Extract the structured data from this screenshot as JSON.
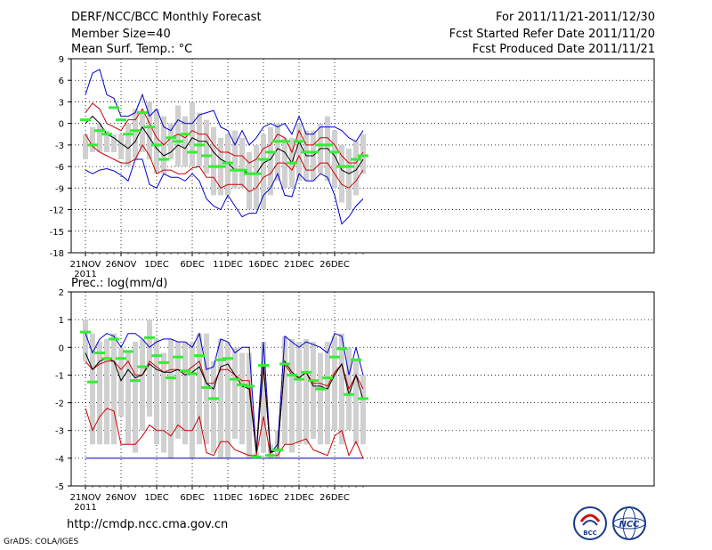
{
  "header": {
    "title": "DERF/NCC/BCC Monthly Forecast",
    "member_size": "Member Size=40",
    "variable": "Mean Surf. Temp.: °C",
    "period": "For 2011/11/21-2011/12/30",
    "started": "Fcst Started Refer Date 2011/11/20",
    "produced": "Fcst Produced Date 2011/11/21"
  },
  "footer": {
    "url": "http://cmdp.ncc.cma.gov.cn",
    "grads": "GrADS: COLA/IGES",
    "logo_left": "BCC",
    "logo_right": "NCC"
  },
  "colors": {
    "box": "#d0d0d0",
    "mean": "#000000",
    "spread": "#cc0000",
    "extreme": "#0000cc",
    "obs": "#33ee33",
    "grid": "#000000"
  },
  "chart_data": [
    {
      "type": "line",
      "title": "Mean Surf. Temp.: °C",
      "ylabel": "°C",
      "ylim": [
        -18,
        9
      ],
      "yticks": [
        -18,
        -15,
        -12,
        -9,
        -6,
        -3,
        0,
        3,
        6,
        9
      ],
      "x": [
        1,
        2,
        3,
        4,
        5,
        6,
        7,
        8,
        9,
        10,
        11,
        12,
        13,
        14,
        15,
        16,
        17,
        18,
        19,
        20,
        21,
        22,
        23,
        24,
        25,
        26,
        27,
        28,
        29,
        30,
        31,
        32,
        33,
        34,
        35,
        36,
        37,
        38,
        39,
        40
      ],
      "x_tick_labels": [
        {
          "x": 1,
          "label": "21NOV",
          "sub": "2011"
        },
        {
          "x": 6,
          "label": "26NOV"
        },
        {
          "x": 11,
          "label": "1DEC"
        },
        {
          "x": 16,
          "label": "6DEC"
        },
        {
          "x": 21,
          "label": "11DEC"
        },
        {
          "x": 26,
          "label": "16DEC"
        },
        {
          "x": 31,
          "label": "21DEC"
        },
        {
          "x": 36,
          "label": "26DEC"
        }
      ],
      "series": [
        {
          "name": "max",
          "values": [
            -1.5,
            -0.5,
            0,
            -1,
            -1.5,
            -1.5,
            0,
            2,
            1.5,
            3,
            2,
            1,
            0,
            2.5,
            1,
            3,
            1.5,
            0.5,
            -0.5,
            -2,
            -1.5,
            -1,
            -2,
            -4,
            -3,
            -1.5,
            -0.5,
            0,
            -2,
            -2,
            0,
            -1,
            -1,
            0,
            1,
            -1,
            -3,
            -3.5,
            -2.5,
            -1.5
          ]
        },
        {
          "name": "min",
          "values": [
            -5,
            -4,
            -4,
            -4,
            -4,
            -5,
            -6,
            -5,
            -4,
            -5,
            -7,
            -7,
            -5,
            -6,
            -6,
            -6,
            -6,
            -7,
            -10,
            -10,
            -10,
            -9,
            -9,
            -12,
            -12,
            -12,
            -10,
            -8,
            -9,
            -9,
            -8,
            -8,
            -8,
            -7,
            -8,
            -9,
            -11,
            -12,
            -10,
            -7
          ]
        },
        {
          "name": "ens_max",
          "values": [
            4,
            7,
            7.5,
            4,
            3.5,
            1,
            1,
            1.5,
            4,
            1,
            2,
            -0.5,
            -1,
            0.5,
            0,
            0,
            1.2,
            1.5,
            1.8,
            -0.5,
            -1,
            -3,
            -1,
            -3,
            -2,
            -0.5,
            0,
            -0.5,
            0,
            -1.5,
            1,
            -1.5,
            -1.5,
            -0.5,
            -0.5,
            -0.5,
            -1,
            -2,
            -2.5,
            -1
          ]
        },
        {
          "name": "ens_min",
          "values": [
            -6.5,
            -7,
            -6.5,
            -6.3,
            -6.6,
            -7.2,
            -8,
            -5,
            -5,
            -8.5,
            -9,
            -7,
            -7.5,
            -7.5,
            -8,
            -7,
            -8,
            -10.5,
            -11.5,
            -12,
            -10,
            -11.5,
            -13,
            -12.5,
            -12.5,
            -10,
            -9,
            -7,
            -10,
            -10.2,
            -7,
            -8,
            -8,
            -7,
            -7.5,
            -10,
            -14,
            -13,
            -11.5,
            -10.5
          ]
        },
        {
          "name": "spread_upper",
          "values": [
            1.5,
            2.8,
            2,
            0,
            -0.5,
            -1,
            0.5,
            0.5,
            2,
            0,
            -2,
            -3,
            -2,
            -1.5,
            -2,
            -1,
            -1.5,
            -1.5,
            -3,
            -4,
            -4,
            -4.5,
            -4.5,
            -5.5,
            -5,
            -3.5,
            -3,
            -1.5,
            -2,
            -4,
            -1,
            -3,
            -3,
            -2,
            -2,
            -3,
            -4.5,
            -5.5,
            -5.5,
            -4
          ]
        },
        {
          "name": "spread_lower",
          "values": [
            -1.5,
            -3.2,
            -4,
            -4.5,
            -5,
            -5.5,
            -5.5,
            -5,
            -3,
            -4.5,
            -7,
            -6.5,
            -6.5,
            -7,
            -7,
            -6.2,
            -6,
            -7.5,
            -7.5,
            -9,
            -8.5,
            -8.5,
            -8.5,
            -9.5,
            -9,
            -7.5,
            -7,
            -5.5,
            -5.5,
            -6.5,
            -4.5,
            -6.5,
            -6.5,
            -5.5,
            -5.5,
            -7,
            -8.5,
            -9,
            -8,
            -6.5
          ]
        },
        {
          "name": "ens_mean",
          "values": [
            0,
            1,
            0,
            -1.5,
            -2,
            -2.8,
            -3.5,
            -2.5,
            -0.5,
            -2,
            -3.5,
            -4.5,
            -4,
            -3,
            -3.5,
            -2,
            -2.5,
            -2.5,
            -4,
            -5,
            -5.5,
            -6.5,
            -6.5,
            -7,
            -7,
            -5.5,
            -5,
            -3.5,
            -4,
            -5.5,
            -2.5,
            -4.5,
            -4.5,
            -3.5,
            -3.5,
            -4.5,
            -6.5,
            -7,
            -6.5,
            -5
          ]
        },
        {
          "name": "observed",
          "values": [
            0.5,
            -3,
            -1,
            -1.5,
            2.2,
            0.5,
            -1.5,
            -1,
            1.5,
            -0.5,
            -3,
            -5,
            -2,
            -2.5,
            -1.5,
            -4,
            -3,
            -4.5,
            -6,
            -6,
            -5.5,
            -6.5,
            -6.5,
            -7,
            -7,
            -5,
            -4,
            -2.5,
            -2.5,
            -5.5,
            -2.5,
            -4,
            -4,
            -3,
            -3,
            -4,
            -6,
            -6,
            -5,
            -4.5
          ]
        }
      ]
    },
    {
      "type": "line",
      "title": "Prec.: log(mm/d)",
      "ylabel": "log(mm/d)",
      "ylim": [
        -5,
        2
      ],
      "yticks": [
        -5,
        -4,
        -3,
        -2,
        -1,
        0,
        1,
        2
      ],
      "x": [
        1,
        2,
        3,
        4,
        5,
        6,
        7,
        8,
        9,
        10,
        11,
        12,
        13,
        14,
        15,
        16,
        17,
        18,
        19,
        20,
        21,
        22,
        23,
        24,
        25,
        26,
        27,
        28,
        29,
        30,
        31,
        32,
        33,
        34,
        35,
        36,
        37,
        38,
        39,
        40
      ],
      "x_tick_labels": [
        {
          "x": 1,
          "label": "21NOV",
          "sub": "2011"
        },
        {
          "x": 6,
          "label": "26NOV"
        },
        {
          "x": 11,
          "label": "1DEC"
        },
        {
          "x": 16,
          "label": "6DEC"
        },
        {
          "x": 21,
          "label": "11DEC"
        },
        {
          "x": 26,
          "label": "16DEC"
        },
        {
          "x": 31,
          "label": "21DEC"
        },
        {
          "x": 36,
          "label": "26DEC"
        }
      ],
      "series": [
        {
          "name": "max",
          "values": [
            1,
            0.5,
            0.2,
            0.3,
            0.5,
            0,
            -0.2,
            0.2,
            0.3,
            1,
            0.3,
            -0.2,
            0.3,
            0.2,
            0.2,
            0.2,
            0.5,
            0.5,
            -0.5,
            0.3,
            0.2,
            0,
            -0.2,
            -0.2,
            -3.8,
            0.2,
            -3.5,
            -3,
            0.4,
            0.3,
            0.2,
            0.3,
            0.2,
            -0.2,
            0.2,
            0.4,
            0.5,
            0,
            -0.5,
            -1
          ]
        },
        {
          "name": "min",
          "values": [
            -0.5,
            -3.5,
            -3.5,
            -3.5,
            -3.5,
            -2.5,
            -3.5,
            -3.8,
            -3,
            -2.5,
            -3.5,
            -3.8,
            -4,
            -3.3,
            -3.5,
            -4,
            -3.5,
            -3.5,
            -3.8,
            -4,
            -4,
            -3.3,
            -3.5,
            -4,
            -4,
            -3.8,
            -4,
            -4,
            -3.5,
            -3.8,
            -3.5,
            -3.5,
            -3.3,
            -3.5,
            -3.5,
            -3,
            -3.5,
            -3,
            -3.5,
            -3.5
          ]
        },
        {
          "name": "ens_max",
          "values": [
            0.5,
            -0.2,
            0.3,
            0.5,
            0.4,
            0,
            0.5,
            0.5,
            0.3,
            0,
            0.2,
            0.3,
            0.3,
            0.2,
            0.2,
            0,
            0.5,
            -0.8,
            -0.7,
            0.3,
            0.2,
            -0.2,
            0,
            0,
            -3.8,
            0.2,
            -3.8,
            -3.5,
            0.4,
            0.2,
            0,
            0.2,
            0.1,
            0,
            -0.2,
            0.5,
            0.4,
            -1,
            0,
            -1
          ]
        },
        {
          "name": "ens_min",
          "values": [
            -4,
            -4,
            -4,
            -4,
            -4,
            -4,
            -4,
            -4,
            -4,
            -4,
            -4,
            -4,
            -4,
            -4,
            -4,
            -4,
            -4,
            -4,
            -4,
            -4,
            -4,
            -4,
            -4,
            -4,
            -4,
            -4,
            -4,
            -4,
            -4,
            -4,
            -4,
            -4,
            -4,
            -4,
            -4,
            -4,
            -4,
            -4,
            -4,
            -4
          ]
        },
        {
          "name": "spread_upper",
          "values": [
            -0.5,
            -0.8,
            -0.6,
            -0.5,
            -0.5,
            -0.8,
            -0.5,
            -1,
            -1,
            -0.5,
            -0.7,
            -0.9,
            -0.8,
            -0.8,
            -0.9,
            -0.7,
            -0.5,
            -1.3,
            -1.3,
            -0.8,
            -0.8,
            -1,
            -1.2,
            -1.2,
            -3.8,
            -0.6,
            -3.8,
            -3.7,
            -0.6,
            -1,
            -1.1,
            -0.9,
            -1.3,
            -1.3,
            -1.4,
            -0.9,
            -0.6,
            -1.5,
            -1,
            -1.5
          ]
        },
        {
          "name": "spread_lower",
          "values": [
            -2.2,
            -3,
            -2.5,
            -2.2,
            -2.3,
            -3.5,
            -3.5,
            -3.5,
            -3.2,
            -2.8,
            -3,
            -3,
            -3.2,
            -2.8,
            -3,
            -3,
            -2.5,
            -3.8,
            -3.9,
            -3.4,
            -3.4,
            -3.7,
            -3.8,
            -3.9,
            -3.9,
            -2.5,
            -3.9,
            -3.9,
            -3.5,
            -3.5,
            -3.4,
            -3.3,
            -3.7,
            -3.8,
            -3.9,
            -3.2,
            -3,
            -3.9,
            -3.4,
            -4
          ]
        },
        {
          "name": "ens_mean",
          "values": [
            -0.2,
            -0.8,
            -0.5,
            -0.4,
            -0.5,
            -1.2,
            -0.8,
            -1.1,
            -1,
            -0.6,
            -0.8,
            -0.9,
            -0.9,
            -0.8,
            -1,
            -0.9,
            -0.7,
            -1.3,
            -1.5,
            -0.7,
            -0.6,
            -1,
            -1.4,
            -1.5,
            -3.8,
            -0.7,
            -3.8,
            -3.7,
            -0.5,
            -0.9,
            -1.1,
            -0.9,
            -1.4,
            -1.4,
            -1.5,
            -1,
            -0.6,
            -1.7,
            -1,
            -1.9
          ]
        },
        {
          "name": "observed",
          "values": [
            0.55,
            -1.25,
            -0.2,
            -0.4,
            0.3,
            -0.4,
            -0.15,
            -1.2,
            -0.7,
            0.35,
            -0.3,
            -0.55,
            -1.1,
            -0.35,
            -0.85,
            -0.95,
            -0.3,
            -1.45,
            -1.85,
            -0.45,
            -0.4,
            -1.15,
            -1.35,
            -1.4,
            -3.95,
            -0.65,
            -3.9,
            -3.7,
            -0.6,
            -1,
            -1.15,
            -0.9,
            -1.2,
            -1.5,
            -1.1,
            -0.35,
            -0.05,
            -1.7,
            -0.45,
            -1.85
          ]
        }
      ]
    }
  ]
}
